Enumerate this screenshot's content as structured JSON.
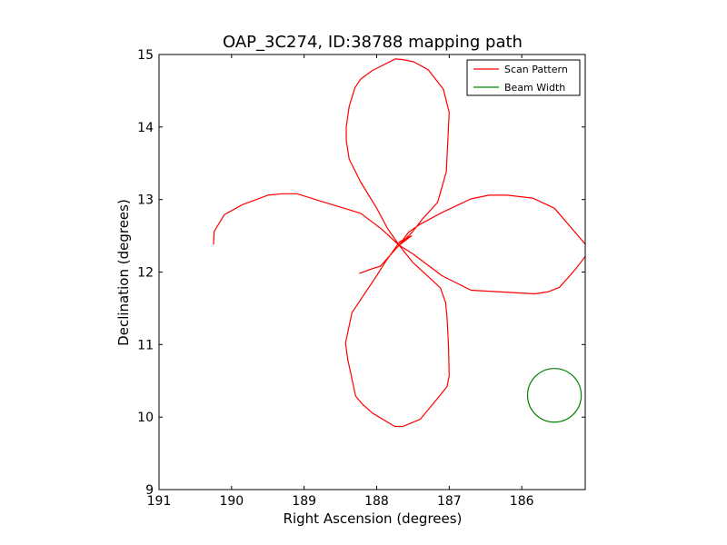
{
  "chart_data": {
    "type": "line",
    "title": "OAP_3C274, ID:38788 mapping path",
    "xlabel": "Right Ascension (degrees)",
    "ylabel": "Declination (degrees)",
    "xlim": [
      191,
      185.125
    ],
    "ylim": [
      9,
      15
    ],
    "x_inverted": true,
    "xticks": [
      191,
      190,
      189,
      188,
      187,
      186
    ],
    "xtick_labels": [
      "191",
      "190",
      "189",
      "188",
      "187",
      "186"
    ],
    "yticks": [
      9,
      10,
      11,
      12,
      13,
      14,
      15
    ],
    "ytick_labels": [
      "9",
      "10",
      "11",
      "12",
      "13",
      "14",
      "15"
    ],
    "grid": false,
    "legend": "top-right",
    "series": [
      {
        "name": "Scan Pattern",
        "color": "#ff0000",
        "points": [
          [
            190.25,
            12.38
          ],
          [
            190.24,
            12.56
          ],
          [
            190.1,
            12.79
          ],
          [
            189.85,
            12.93
          ],
          [
            189.5,
            13.06
          ],
          [
            189.3,
            13.08
          ],
          [
            189.1,
            13.08
          ],
          [
            188.68,
            12.95
          ],
          [
            188.22,
            12.81
          ],
          [
            187.93,
            12.59
          ],
          [
            187.69,
            12.37
          ],
          [
            187.56,
            12.55
          ],
          [
            187.4,
            12.66
          ],
          [
            187.12,
            12.81
          ],
          [
            186.87,
            12.93
          ],
          [
            186.7,
            13.01
          ],
          [
            186.45,
            13.06
          ],
          [
            186.2,
            13.06
          ],
          [
            185.85,
            13.02
          ],
          [
            185.55,
            12.88
          ],
          [
            185.12,
            12.38
          ],
          [
            185.12,
            12.22
          ],
          [
            185.25,
            12.05
          ],
          [
            185.48,
            11.79
          ],
          [
            185.63,
            11.73
          ],
          [
            185.82,
            11.7
          ],
          [
            186.7,
            11.75
          ],
          [
            186.9,
            11.85
          ],
          [
            187.1,
            11.95
          ],
          [
            187.5,
            12.25
          ],
          [
            187.69,
            12.37
          ],
          [
            187.51,
            12.55
          ],
          [
            187.37,
            12.73
          ],
          [
            187.16,
            12.96
          ],
          [
            187.04,
            13.38
          ],
          [
            187.0,
            14.2
          ],
          [
            187.08,
            14.52
          ],
          [
            187.29,
            14.79
          ],
          [
            187.49,
            14.9
          ],
          [
            187.64,
            14.93
          ],
          [
            187.74,
            14.94
          ],
          [
            188.06,
            14.78
          ],
          [
            188.22,
            14.66
          ],
          [
            188.3,
            14.54
          ],
          [
            188.38,
            14.28
          ],
          [
            188.42,
            14.0
          ],
          [
            188.42,
            13.82
          ],
          [
            188.38,
            13.56
          ],
          [
            188.22,
            13.24
          ],
          [
            188.0,
            12.88
          ],
          [
            187.85,
            12.6
          ],
          [
            187.69,
            12.37
          ],
          [
            187.5,
            12.13
          ],
          [
            187.27,
            11.92
          ],
          [
            187.12,
            11.78
          ],
          [
            187.05,
            11.58
          ],
          [
            187.03,
            11.38
          ],
          [
            187.01,
            11.0
          ],
          [
            187.0,
            10.57
          ],
          [
            187.03,
            10.42
          ],
          [
            187.15,
            10.27
          ],
          [
            187.4,
            9.97
          ],
          [
            187.52,
            9.92
          ],
          [
            187.64,
            9.87
          ],
          [
            187.75,
            9.87
          ],
          [
            188.05,
            10.05
          ],
          [
            188.2,
            10.18
          ],
          [
            188.29,
            10.29
          ],
          [
            188.4,
            10.8
          ],
          [
            188.43,
            11.02
          ],
          [
            188.34,
            11.44
          ],
          [
            188.0,
            11.95
          ],
          [
            187.88,
            12.14
          ],
          [
            187.68,
            12.42
          ],
          [
            187.52,
            12.5
          ],
          [
            187.69,
            12.37
          ],
          [
            187.95,
            12.08
          ],
          [
            188.05,
            12.05
          ],
          [
            188.24,
            11.98
          ]
        ]
      },
      {
        "name": "Beam Width",
        "color": "#008000",
        "shape": "circle",
        "center": [
          185.55,
          10.3
        ],
        "radius": 0.37
      }
    ]
  }
}
